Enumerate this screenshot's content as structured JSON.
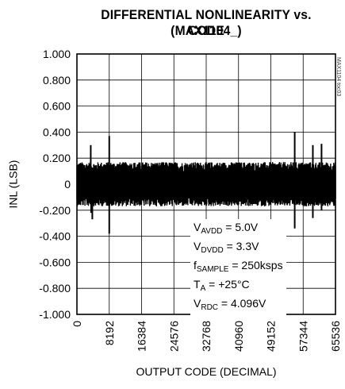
{
  "chart_data": {
    "type": "line",
    "title_line1": "DIFFERENTIAL NONLINEARITY vs. CODE",
    "title_line2": "(MAX1104_)",
    "xlabel": "OUTPUT CODE (DECIMAL)",
    "ylabel": "INL (LSB)",
    "xlim": [
      0,
      65536
    ],
    "ylim": [
      -1.0,
      1.0
    ],
    "x_ticks": [
      "0",
      "8192",
      "16384",
      "24576",
      "32768",
      "40960",
      "49152",
      "57344",
      "65536"
    ],
    "y_ticks": [
      "1.000",
      "0.800",
      "0.600",
      "0.400",
      "0.200",
      "0",
      "-0.200",
      "-0.400",
      "-0.600",
      "-0.800",
      "-1.000"
    ],
    "grid": true,
    "series": [
      {
        "band_upper": 0.17,
        "band_lower": -0.17,
        "spikes": [
          {
            "x": 3500,
            "y": 0.3
          },
          {
            "x": 3600,
            "y": -0.22
          },
          {
            "x": 3900,
            "y": -0.27
          },
          {
            "x": 8192,
            "y": 0.37
          },
          {
            "x": 8192,
            "y": -0.38
          },
          {
            "x": 55200,
            "y": 0.4
          },
          {
            "x": 55200,
            "y": -0.34
          },
          {
            "x": 59800,
            "y": 0.3
          },
          {
            "x": 59800,
            "y": -0.26
          },
          {
            "x": 62000,
            "y": 0.31
          },
          {
            "x": 62000,
            "y": -0.2
          }
        ]
      }
    ],
    "annotation": [
      {
        "main": "V",
        "sub": "AVDD",
        "rest": " = 5.0V"
      },
      {
        "main": "V",
        "sub": "DVDD",
        "rest": " = 3.3V"
      },
      {
        "main": "f",
        "sub": "SAMPLE",
        "rest": " = 250ksps"
      },
      {
        "main": "T",
        "sub": "A",
        "rest": " = +25°C"
      },
      {
        "main": "V",
        "sub": "RDC",
        "rest": " = 4.096V"
      }
    ],
    "watermark": "MAX1104 toc03"
  }
}
